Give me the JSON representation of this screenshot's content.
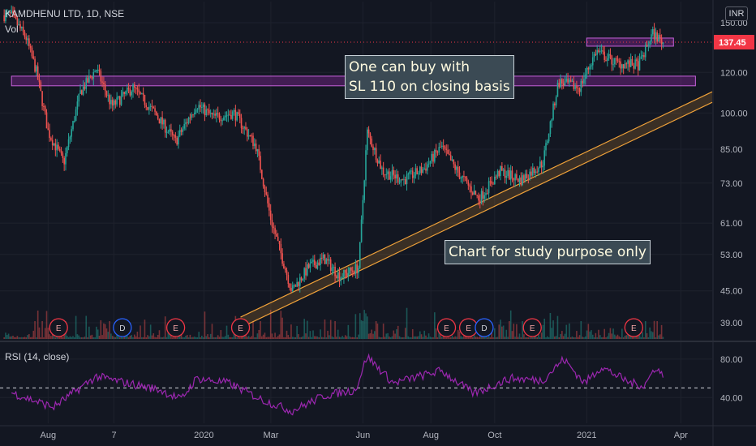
{
  "header": {
    "symbol": "KAMDHENU LTD, 1D, NSE",
    "vol_label": "Vol",
    "currency": "INR"
  },
  "notes": {
    "buy_line1": "One can buy with",
    "buy_line2": "SL 110 on closing basis",
    "study": "Chart for study purpose only"
  },
  "colors": {
    "up": "#26a69a",
    "down": "#ef5350",
    "zone": "#9c27b0",
    "trendline": "#f0a23a",
    "rsi": "#9c27b0",
    "price_tag": "#f23645"
  },
  "chart_data": [
    {
      "type": "candlestick",
      "title": "KAMDHENU LTD, 1D, NSE",
      "y_axis": {
        "scale": "log",
        "ticks": [
          39,
          45,
          53,
          61,
          73,
          85,
          100,
          120,
          150
        ],
        "tick_labels": [
          "39.00",
          "45.00",
          "53.00",
          "61.00",
          "73.00",
          "85.00",
          "100.00",
          "120.00",
          "150.00"
        ]
      },
      "x_axis": {
        "ticks": [
          "Aug",
          "7",
          "2020",
          "Mar",
          "Jun",
          "Aug",
          "Oct",
          "2021",
          "Apr"
        ]
      },
      "last_price": 137.45,
      "last_price_label": "137.45",
      "close_path": [
        {
          "date": "2019-07-01",
          "close": 155
        },
        {
          "date": "2019-07-15",
          "close": 140
        },
        {
          "date": "2019-07-25",
          "close": 120
        },
        {
          "date": "2019-08-05",
          "close": 92
        },
        {
          "date": "2019-08-20",
          "close": 80
        },
        {
          "date": "2019-09-05",
          "close": 110
        },
        {
          "date": "2019-09-20",
          "close": 122
        },
        {
          "date": "2019-10-05",
          "close": 103
        },
        {
          "date": "2019-10-25",
          "close": 112
        },
        {
          "date": "2019-11-15",
          "close": 100
        },
        {
          "date": "2019-12-05",
          "close": 88
        },
        {
          "date": "2019-12-25",
          "close": 104
        },
        {
          "date": "2020-01-10",
          "close": 98
        },
        {
          "date": "2020-01-30",
          "close": 100
        },
        {
          "date": "2020-02-20",
          "close": 86
        },
        {
          "date": "2020-03-05",
          "close": 62
        },
        {
          "date": "2020-03-25",
          "close": 45
        },
        {
          "date": "2020-04-10",
          "close": 50
        },
        {
          "date": "2020-04-25",
          "close": 52
        },
        {
          "date": "2020-05-10",
          "close": 48
        },
        {
          "date": "2020-05-28",
          "close": 50
        },
        {
          "date": "2020-06-05",
          "close": 92
        },
        {
          "date": "2020-06-20",
          "close": 77
        },
        {
          "date": "2020-07-10",
          "close": 74
        },
        {
          "date": "2020-07-30",
          "close": 78
        },
        {
          "date": "2020-08-15",
          "close": 86
        },
        {
          "date": "2020-09-01",
          "close": 76
        },
        {
          "date": "2020-09-20",
          "close": 68
        },
        {
          "date": "2020-10-10",
          "close": 77
        },
        {
          "date": "2020-10-30",
          "close": 74
        },
        {
          "date": "2020-11-20",
          "close": 80
        },
        {
          "date": "2020-12-05",
          "close": 115
        },
        {
          "date": "2020-12-25",
          "close": 112
        },
        {
          "date": "2021-01-10",
          "close": 132
        },
        {
          "date": "2021-01-30",
          "close": 125
        },
        {
          "date": "2021-02-20",
          "close": 124
        },
        {
          "date": "2021-03-05",
          "close": 143
        },
        {
          "date": "2021-03-15",
          "close": 137.45
        }
      ],
      "resistance_zones": [
        {
          "from": "2019-07-01",
          "to": "2021-04-15",
          "low": 113,
          "high": 118
        },
        {
          "from": "2021-01-01",
          "to": "2021-03-25",
          "low": 135,
          "high": 140
        }
      ],
      "trendline": {
        "start": {
          "date": "2020-02-05",
          "price": 40
        },
        "end": {
          "date": "2021-05-01",
          "price": 110
        }
      },
      "events": [
        {
          "date": "2019-08-15",
          "label": "E",
          "kind": "earnings"
        },
        {
          "date": "2019-10-15",
          "label": "D",
          "kind": "dividend"
        },
        {
          "date": "2019-12-05",
          "label": "E",
          "kind": "earnings"
        },
        {
          "date": "2020-02-05",
          "label": "E",
          "kind": "earnings"
        },
        {
          "date": "2020-08-20",
          "label": "E",
          "kind": "earnings"
        },
        {
          "date": "2020-09-10",
          "label": "E",
          "kind": "earnings"
        },
        {
          "date": "2020-09-25",
          "label": "D",
          "kind": "dividend"
        },
        {
          "date": "2020-11-10",
          "label": "E",
          "kind": "earnings"
        },
        {
          "date": "2021-02-15",
          "label": "E",
          "kind": "earnings"
        }
      ]
    },
    {
      "type": "line",
      "title": "RSI (14, close)",
      "y_axis": {
        "ticks": [
          40,
          80
        ],
        "tick_labels": [
          "40.00",
          "80.00"
        ],
        "range": [
          20,
          90
        ]
      },
      "reference_line": 50,
      "series": [
        {
          "name": "RSI (14, close)",
          "values": [
            {
              "date": "2019-07-01",
              "value": 45
            },
            {
              "date": "2019-08-10",
              "value": 30
            },
            {
              "date": "2019-09-20",
              "value": 62
            },
            {
              "date": "2019-10-20",
              "value": 55
            },
            {
              "date": "2019-11-20",
              "value": 48
            },
            {
              "date": "2019-12-10",
              "value": 38
            },
            {
              "date": "2019-12-25",
              "value": 60
            },
            {
              "date": "2020-01-25",
              "value": 55
            },
            {
              "date": "2020-02-25",
              "value": 38
            },
            {
              "date": "2020-03-25",
              "value": 26
            },
            {
              "date": "2020-04-25",
              "value": 42
            },
            {
              "date": "2020-05-25",
              "value": 48
            },
            {
              "date": "2020-06-05",
              "value": 83
            },
            {
              "date": "2020-06-30",
              "value": 55
            },
            {
              "date": "2020-08-15",
              "value": 68
            },
            {
              "date": "2020-09-15",
              "value": 44
            },
            {
              "date": "2020-10-20",
              "value": 60
            },
            {
              "date": "2020-11-20",
              "value": 58
            },
            {
              "date": "2020-12-10",
              "value": 80
            },
            {
              "date": "2020-12-30",
              "value": 55
            },
            {
              "date": "2021-01-15",
              "value": 72
            },
            {
              "date": "2021-02-10",
              "value": 56
            },
            {
              "date": "2021-02-25",
              "value": 52
            },
            {
              "date": "2021-03-08",
              "value": 72
            },
            {
              "date": "2021-03-15",
              "value": 62
            }
          ]
        }
      ]
    }
  ]
}
